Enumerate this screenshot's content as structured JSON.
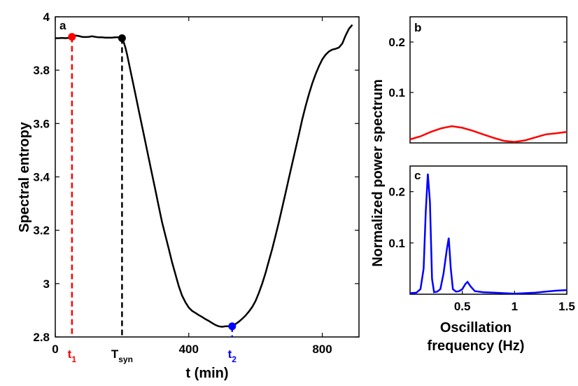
{
  "chart_data": [
    {
      "panel": "a",
      "type": "line",
      "xlabel": "t (min)",
      "ylabel": "Spectral entropy",
      "xlim": [
        0,
        910
      ],
      "ylim": [
        2.8,
        4.0
      ],
      "xticks": [
        "0",
        "400",
        "800"
      ],
      "xtick_values": [
        0,
        400,
        800
      ],
      "yticks": [
        "2.8",
        "3",
        "3.2",
        "3.4",
        "3.6",
        "3.8",
        "4"
      ],
      "ytick_values": [
        2.8,
        3.0,
        3.2,
        3.4,
        3.6,
        3.8,
        4.0
      ],
      "colors": {
        "line": "#000000",
        "t1": "#ff0000",
        "tsyn": "#000000",
        "t2": "#0000ff"
      },
      "markers": [
        {
          "name": "t1",
          "base": "t",
          "sub": "1",
          "x": 50,
          "y": 3.925,
          "color": "#ff0000"
        },
        {
          "name": "tsyn",
          "base": "T",
          "sub": "syn",
          "x": 200,
          "y": 3.92,
          "color": "#000000"
        },
        {
          "name": "t2",
          "base": "t",
          "sub": "2",
          "x": 530,
          "y": 2.84,
          "color": "#0000ff"
        }
      ],
      "series": [
        {
          "name": "spectral-entropy",
          "x": [
            0,
            10,
            20,
            30,
            40,
            50,
            60,
            70,
            80,
            90,
            100,
            110,
            120,
            130,
            140,
            150,
            160,
            170,
            180,
            190,
            200,
            205,
            210,
            215,
            220,
            230,
            240,
            250,
            260,
            270,
            280,
            290,
            300,
            310,
            320,
            330,
            340,
            350,
            360,
            370,
            380,
            390,
            400,
            410,
            420,
            430,
            440,
            450,
            460,
            470,
            480,
            490,
            500,
            510,
            520,
            530,
            540,
            550,
            560,
            570,
            580,
            590,
            600,
            610,
            620,
            630,
            640,
            650,
            660,
            670,
            680,
            690,
            700,
            710,
            720,
            730,
            740,
            750,
            760,
            770,
            780,
            790,
            800,
            810,
            820,
            830,
            840,
            850,
            860,
            870,
            880,
            890
          ],
          "y": [
            3.92,
            3.92,
            3.921,
            3.92,
            3.921,
            3.925,
            3.93,
            3.928,
            3.925,
            3.924,
            3.925,
            3.927,
            3.925,
            3.923,
            3.923,
            3.922,
            3.922,
            3.922,
            3.923,
            3.923,
            3.92,
            3.905,
            3.885,
            3.86,
            3.83,
            3.77,
            3.71,
            3.65,
            3.59,
            3.53,
            3.47,
            3.41,
            3.35,
            3.29,
            3.23,
            3.18,
            3.13,
            3.08,
            3.035,
            2.99,
            2.955,
            2.93,
            2.91,
            2.898,
            2.89,
            2.882,
            2.875,
            2.867,
            2.86,
            2.852,
            2.845,
            2.84,
            2.838,
            2.84,
            2.84,
            2.842,
            2.848,
            2.857,
            2.868,
            2.88,
            2.895,
            2.912,
            2.935,
            2.965,
            3.0,
            3.04,
            3.085,
            3.13,
            3.18,
            3.23,
            3.285,
            3.34,
            3.395,
            3.45,
            3.505,
            3.56,
            3.615,
            3.665,
            3.71,
            3.75,
            3.785,
            3.815,
            3.84,
            3.858,
            3.87,
            3.877,
            3.88,
            3.885,
            3.9,
            3.93,
            3.955,
            3.97
          ]
        }
      ]
    },
    {
      "panel": "b",
      "type": "line",
      "xlabel": "",
      "ylabel": "",
      "xlim": [
        0,
        1.5
      ],
      "ylim": [
        0,
        0.25
      ],
      "yticks": [
        "0.1",
        "0.2"
      ],
      "ytick_values": [
        0.1,
        0.2
      ],
      "series": [
        {
          "name": "spectrum-t1",
          "color": "#ff0000",
          "x": [
            0.0,
            0.1,
            0.2,
            0.3,
            0.4,
            0.5,
            0.6,
            0.7,
            0.8,
            0.9,
            1.0,
            1.1,
            1.2,
            1.3,
            1.4,
            1.5
          ],
          "y": [
            0.007,
            0.013,
            0.022,
            0.029,
            0.033,
            0.03,
            0.024,
            0.017,
            0.01,
            0.004,
            0.002,
            0.005,
            0.011,
            0.017,
            0.019,
            0.022
          ]
        }
      ]
    },
    {
      "panel": "c",
      "type": "line",
      "xlabel": "Oscillation frequency (Hz)",
      "xlabel_lines": [
        "Oscillation",
        "frequency (Hz)"
      ],
      "ylabel": "Normalized power spectrum",
      "xlim": [
        0,
        1.5
      ],
      "ylim": [
        0,
        0.25
      ],
      "xticks": [
        "0.5",
        "1",
        "1.5"
      ],
      "xtick_values": [
        0.5,
        1.0,
        1.5
      ],
      "yticks": [
        "0.1",
        "0.2"
      ],
      "ytick_values": [
        0.1,
        0.2
      ],
      "series": [
        {
          "name": "spectrum-t2",
          "color": "#0000ff",
          "x": [
            0.0,
            0.06,
            0.1,
            0.13,
            0.15,
            0.17,
            0.19,
            0.21,
            0.23,
            0.26,
            0.29,
            0.32,
            0.35,
            0.37,
            0.39,
            0.41,
            0.44,
            0.47,
            0.5,
            0.53,
            0.55,
            0.58,
            0.62,
            0.7,
            0.8,
            0.9,
            1.0,
            1.1,
            1.2,
            1.3,
            1.4,
            1.5
          ],
          "y": [
            0.002,
            0.003,
            0.01,
            0.05,
            0.16,
            0.235,
            0.18,
            0.03,
            0.004,
            0.005,
            0.01,
            0.04,
            0.085,
            0.11,
            0.05,
            0.01,
            0.005,
            0.006,
            0.01,
            0.02,
            0.024,
            0.015,
            0.006,
            0.004,
            0.003,
            0.002,
            0.001,
            0.002,
            0.003,
            0.005,
            0.007,
            0.008
          ]
        }
      ]
    }
  ]
}
